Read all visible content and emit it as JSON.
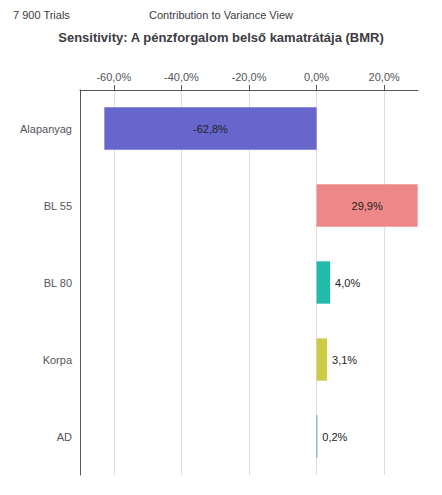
{
  "chart_data": {
    "type": "bar",
    "orientation": "horizontal",
    "title": "Sensitivity: A pénzforgalom belső kamatrátája (BMR)",
    "annotations": [
      "7 900 Trials",
      "Contribution to Variance View"
    ],
    "categories": [
      "Alapanyag",
      "BL 55",
      "BL 80",
      "Korpa",
      "AD"
    ],
    "values": [
      -62.8,
      29.9,
      4.0,
      3.1,
      0.2
    ],
    "value_labels": [
      "-62,8%",
      "29,9%",
      "4,0%",
      "3,1%",
      "0,2%"
    ],
    "colors": [
      "#6666cc",
      "#ee8888",
      "#22bbaa",
      "#cccc44",
      "#4466bb"
    ],
    "xlim": [
      -70,
      30
    ],
    "xticks": [
      {
        "value": -60,
        "label": "-60,0%"
      },
      {
        "value": -40,
        "label": "-40,0%"
      },
      {
        "value": -20,
        "label": "-20,0%"
      },
      {
        "value": 0,
        "label": "0,0%"
      },
      {
        "value": 20,
        "label": "20,0%"
      }
    ],
    "grid": true,
    "data_labels": true
  }
}
